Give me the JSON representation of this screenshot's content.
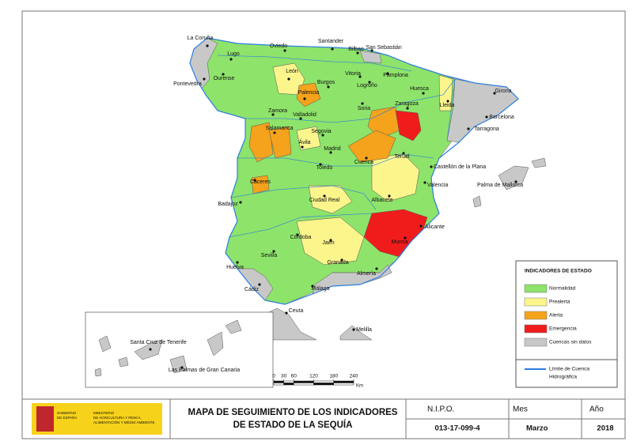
{
  "cities": [
    "La Coruña",
    "Oviedo",
    "Santander",
    "Bilbao",
    "San Sebastián",
    "Lugo",
    "Pontevedra",
    "Ourense",
    "León",
    "Burgos",
    "Vitoria",
    "Logroño",
    "Pamplona",
    "Huesca",
    "Lleida",
    "Girona",
    "Palencia",
    "Zaragoza",
    "Soria",
    "Barcelona",
    "Tarragona",
    "Zamora",
    "Valladolid",
    "Salamanca",
    "Segovia",
    "Ávila",
    "Madrid",
    "Teruel",
    "Cuenca",
    "Castellón de la Plana",
    "Toledo",
    "Palma de Mallorca",
    "Cáceres",
    "Valencia",
    "Badajoz",
    "Ciudad Real",
    "Albacete",
    "Alicante",
    "Córdoba",
    "Murcia",
    "Jaén",
    "Sevilla",
    "Granada",
    "Huelva",
    "Almería",
    "Cádiz",
    "Málaga",
    "Ceuta",
    "Melilla",
    "Santa Cruz de Tenerife",
    "Las Palmas de Gran Canaria"
  ],
  "legend": {
    "title": "INDICADORES DE ESTADO",
    "items": [
      {
        "label": "Normalidad",
        "color": "#8ee36a"
      },
      {
        "label": "Prealerta",
        "color": "#fbf58c"
      },
      {
        "label": "Alerta",
        "color": "#f5a31c"
      },
      {
        "label": "Emergencia",
        "color": "#f01c1c"
      },
      {
        "label": "Cuencas sin datos",
        "color": "#c8c8c8"
      }
    ],
    "boundary": {
      "label": [
        "Límite de Cuenca",
        "Hidrográfica"
      ],
      "color": "#2a7de1"
    }
  },
  "scale": {
    "ticks": [
      0,
      30,
      60,
      120,
      180,
      240
    ],
    "unit": "Km"
  },
  "footer": {
    "logo": {
      "government": [
        "GOBIERNO",
        "DE ESPAÑA"
      ],
      "ministry": [
        "MINISTERIO",
        "DE AGRICULTURA Y PESCA,",
        "ALIMENTACIÓN Y MEDIO AMBIENTE"
      ]
    },
    "title": [
      "MAPA DE SEGUIMIENTO DE LOS INDICADORES",
      "DE ESTADO DE LA SEQUÍA"
    ],
    "nipo": {
      "label": "N.I.P.O.",
      "value": "013-17-099-4"
    },
    "month": {
      "label": "Mes",
      "value": "Marzo"
    },
    "year": {
      "label": "Año",
      "value": "2018"
    }
  }
}
